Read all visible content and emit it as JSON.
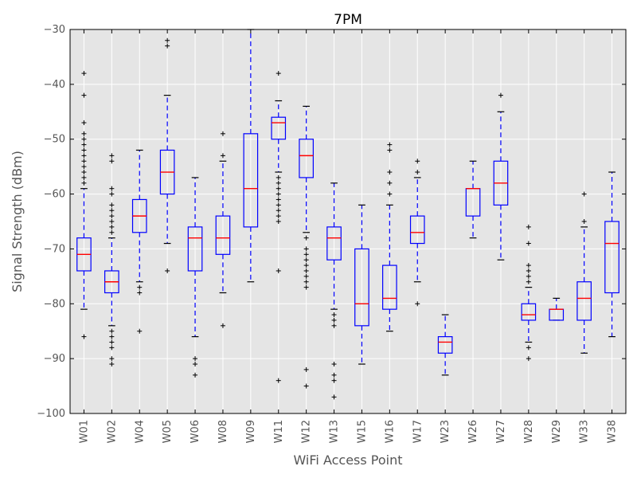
{
  "chart_data": {
    "type": "boxplot",
    "title": "7PM",
    "xlabel": "WiFi Access Point",
    "ylabel": "Signal Strength (dBm)",
    "ylim": [
      -100,
      -30
    ],
    "yticks": [
      -100,
      -90,
      -80,
      -70,
      -60,
      -50,
      -40,
      -30
    ],
    "grid": true,
    "colors": {
      "background": "#e5e5e5",
      "grid": "#ffffff",
      "box": "#0000ff",
      "median": "#ff0000",
      "flier": "#000000"
    },
    "boxes": [
      {
        "label": "W01",
        "whislo": -81,
        "q1": -74,
        "med": -71,
        "q3": -68,
        "whishi": -59,
        "fliers": [
          -86,
          -38,
          -42,
          -47,
          -49,
          -50,
          -51,
          -52,
          -53,
          -54,
          -55,
          -56,
          -57,
          -58
        ]
      },
      {
        "label": "W02",
        "whislo": -84,
        "q1": -78,
        "med": -76,
        "q3": -74,
        "whishi": -68,
        "fliers": [
          -85,
          -86,
          -87,
          -88,
          -90,
          -91,
          -53,
          -54,
          -59,
          -60,
          -62,
          -63,
          -64,
          -65,
          -66,
          -67
        ]
      },
      {
        "label": "W04",
        "whislo": -76,
        "q1": -67,
        "med": -64,
        "q3": -61,
        "whishi": -52,
        "fliers": [
          -77,
          -78,
          -85
        ]
      },
      {
        "label": "W05",
        "whislo": -69,
        "q1": -60,
        "med": -56,
        "q3": -52,
        "whishi": -42,
        "fliers": [
          -74,
          -32,
          -33
        ]
      },
      {
        "label": "W06",
        "whislo": -86,
        "q1": -74,
        "med": -68,
        "q3": -66,
        "whishi": -57,
        "fliers": [
          -90,
          -91,
          -93
        ]
      },
      {
        "label": "W08",
        "whislo": -78,
        "q1": -71,
        "med": -68,
        "q3": -64,
        "whishi": -54,
        "fliers": [
          -84,
          -53,
          -49
        ]
      },
      {
        "label": "W09",
        "whislo": -76,
        "q1": -66,
        "med": -59,
        "q3": -49,
        "whishi": -30,
        "fliers": []
      },
      {
        "label": "W11",
        "whislo": -56,
        "q1": -50,
        "med": -47,
        "q3": -46,
        "whishi": -43,
        "fliers": [
          -57,
          -58,
          -59,
          -60,
          -61,
          -62,
          -63,
          -64,
          -65,
          -74,
          -94,
          -38
        ]
      },
      {
        "label": "W12",
        "whislo": -67,
        "q1": -57,
        "med": -53,
        "q3": -50,
        "whishi": -44,
        "fliers": [
          -68,
          -70,
          -71,
          -72,
          -73,
          -74,
          -75,
          -76,
          -77,
          -92,
          -95
        ]
      },
      {
        "label": "W13",
        "whislo": -81,
        "q1": -72,
        "med": -68,
        "q3": -66,
        "whishi": -58,
        "fliers": [
          -82,
          -83,
          -84,
          -91,
          -93,
          -94,
          -97
        ]
      },
      {
        "label": "W15",
        "whislo": -91,
        "q1": -84,
        "med": -80,
        "q3": -70,
        "whishi": -62,
        "fliers": []
      },
      {
        "label": "W16",
        "whislo": -85,
        "q1": -81,
        "med": -79,
        "q3": -73,
        "whishi": -62,
        "fliers": [
          -51,
          -52,
          -56,
          -58,
          -60
        ]
      },
      {
        "label": "W17",
        "whislo": -76,
        "q1": -69,
        "med": -67,
        "q3": -64,
        "whishi": -57,
        "fliers": [
          -80,
          -54,
          -56
        ]
      },
      {
        "label": "W23",
        "whislo": -93,
        "q1": -89,
        "med": -87,
        "q3": -86,
        "whishi": -82,
        "fliers": []
      },
      {
        "label": "W26",
        "whislo": -68,
        "q1": -64,
        "med": -59,
        "q3": -59,
        "whishi": -54,
        "fliers": []
      },
      {
        "label": "W27",
        "whislo": -72,
        "q1": -62,
        "med": -58,
        "q3": -54,
        "whishi": -45,
        "fliers": [
          -42
        ]
      },
      {
        "label": "W28",
        "whislo": -87,
        "q1": -83,
        "med": -82,
        "q3": -80,
        "whishi": -77,
        "fliers": [
          -88,
          -90,
          -66,
          -69,
          -73,
          -74,
          -75,
          -76
        ]
      },
      {
        "label": "W29",
        "whislo": -83,
        "q1": -83,
        "med": -81,
        "q3": -81,
        "whishi": -79,
        "fliers": []
      },
      {
        "label": "W33",
        "whislo": -89,
        "q1": -83,
        "med": -79,
        "q3": -76,
        "whishi": -66,
        "fliers": [
          -60,
          -65
        ]
      },
      {
        "label": "W38",
        "whislo": -86,
        "q1": -78,
        "med": -69,
        "q3": -65,
        "whishi": -56,
        "fliers": []
      }
    ]
  }
}
